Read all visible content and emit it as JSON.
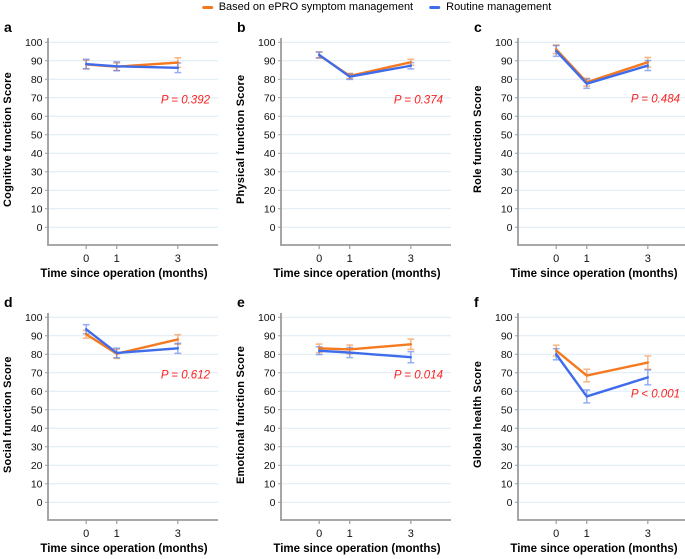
{
  "legend": {
    "items": [
      {
        "label": "Based on ePRO symptom management",
        "color": "#f4791f"
      },
      {
        "label": "Routine management",
        "color": "#3f6ceb"
      }
    ]
  },
  "colors": {
    "epro": "#f4791f",
    "routine": "#3f6ceb",
    "gridline": "#dcebf4",
    "axis": "#9c9c9c",
    "p_text": "#fa2121"
  },
  "chart_data": [
    {
      "panel_letter": "a",
      "type": "line",
      "ylabel": "Cognitive function Score",
      "xlabel": "Time since operation (months)",
      "p_label": "P = 0.392",
      "p_y": 67,
      "x": [
        0,
        1,
        3
      ],
      "x_tick_labels": [
        "0",
        "1",
        "3"
      ],
      "xlim": [
        -1.25,
        4.25
      ],
      "ylim": [
        0,
        100
      ],
      "ytick_step": 10,
      "grid": true,
      "series": [
        {
          "name": "Based on ePRO symptom management",
          "color": "#f4791f",
          "values": [
            88.0,
            86.8,
            89.0
          ],
          "errors": [
            2.3,
            2.0,
            2.6
          ]
        },
        {
          "name": "Routine management",
          "color": "#3f6ceb",
          "values": [
            88.2,
            87.0,
            86.2
          ],
          "errors": [
            2.6,
            2.4,
            2.6
          ]
        }
      ]
    },
    {
      "panel_letter": "b",
      "type": "line",
      "ylabel": "Physical function Score",
      "xlabel": "Time since operation (months)",
      "p_label": "P = 0.374",
      "p_y": 67,
      "x": [
        0,
        1,
        3
      ],
      "x_tick_labels": [
        "0",
        "1",
        "3"
      ],
      "xlim": [
        -1.25,
        4.25
      ],
      "ylim": [
        0,
        100
      ],
      "ytick_step": 10,
      "grid": true,
      "series": [
        {
          "name": "Based on ePRO symptom management",
          "color": "#f4791f",
          "values": [
            93.0,
            81.8,
            89.2
          ],
          "errors": [
            1.6,
            1.4,
            1.6
          ]
        },
        {
          "name": "Routine management",
          "color": "#3f6ceb",
          "values": [
            93.2,
            81.4,
            87.3
          ],
          "errors": [
            1.6,
            1.5,
            1.7
          ]
        }
      ]
    },
    {
      "panel_letter": "c",
      "type": "line",
      "ylabel": "Role function Score",
      "xlabel": "Time since operation (months)",
      "p_label": "P = 0.484",
      "p_y": 67.5,
      "x": [
        0,
        1,
        3
      ],
      "x_tick_labels": [
        "0",
        "1",
        "3"
      ],
      "xlim": [
        -1.25,
        4.25
      ],
      "ylim": [
        0,
        100
      ],
      "ytick_step": 10,
      "grid": true,
      "series": [
        {
          "name": "Based on ePRO symptom management",
          "color": "#f4791f",
          "values": [
            96.2,
            78.4,
            89.2
          ],
          "errors": [
            2.3,
            2.1,
            2.6
          ]
        },
        {
          "name": "Routine management",
          "color": "#3f6ceb",
          "values": [
            95.3,
            77.6,
            87.4
          ],
          "errors": [
            2.9,
            2.5,
            2.7
          ]
        }
      ]
    },
    {
      "panel_letter": "d",
      "type": "line",
      "ylabel": "Social function Score",
      "xlabel": "Time since operation (months)",
      "p_label": "P = 0.612",
      "p_y": 67,
      "x": [
        0,
        1,
        3
      ],
      "x_tick_labels": [
        "0",
        "1",
        "3"
      ],
      "xlim": [
        -1.25,
        4.25
      ],
      "ylim": [
        0,
        100
      ],
      "ytick_step": 10,
      "grid": true,
      "series": [
        {
          "name": "Based on ePRO symptom management",
          "color": "#f4791f",
          "values": [
            90.8,
            80.3,
            88.0
          ],
          "errors": [
            2.1,
            2.5,
            2.6
          ]
        },
        {
          "name": "Routine management",
          "color": "#3f6ceb",
          "values": [
            93.5,
            80.7,
            83.2
          ],
          "errors": [
            2.5,
            2.6,
            2.7
          ]
        }
      ]
    },
    {
      "panel_letter": "e",
      "type": "line",
      "ylabel": "Emotional function Score",
      "xlabel": "Time since operation (months)",
      "p_label": "P = 0.014",
      "p_y": 67,
      "x": [
        0,
        1,
        3
      ],
      "x_tick_labels": [
        "0",
        "1",
        "3"
      ],
      "xlim": [
        -1.25,
        4.25
      ],
      "ylim": [
        0,
        100
      ],
      "ytick_step": 10,
      "grid": true,
      "series": [
        {
          "name": "Based on ePRO symptom management",
          "color": "#f4791f",
          "values": [
            83.2,
            82.6,
            85.4
          ],
          "errors": [
            2.3,
            2.4,
            2.8
          ]
        },
        {
          "name": "Routine management",
          "color": "#3f6ceb",
          "values": [
            81.9,
            80.9,
            78.4
          ],
          "errors": [
            2.1,
            2.7,
            3.0
          ]
        }
      ]
    },
    {
      "panel_letter": "f",
      "type": "line",
      "ylabel": "Global health Score",
      "xlabel": "Time since operation (months)",
      "p_label": "P < 0.001",
      "p_y": 56.5,
      "x": [
        0,
        1,
        3
      ],
      "x_tick_labels": [
        "0",
        "1",
        "3"
      ],
      "xlim": [
        -1.25,
        4.25
      ],
      "ylim": [
        0,
        100
      ],
      "ytick_step": 10,
      "grid": true,
      "series": [
        {
          "name": "Based on ePRO symptom management",
          "color": "#f4791f",
          "values": [
            82.0,
            68.5,
            75.5
          ],
          "errors": [
            2.9,
            3.4,
            3.6
          ]
        },
        {
          "name": "Routine management",
          "color": "#3f6ceb",
          "values": [
            80.0,
            57.2,
            67.5
          ],
          "errors": [
            3.0,
            3.5,
            4.0
          ]
        }
      ]
    }
  ]
}
